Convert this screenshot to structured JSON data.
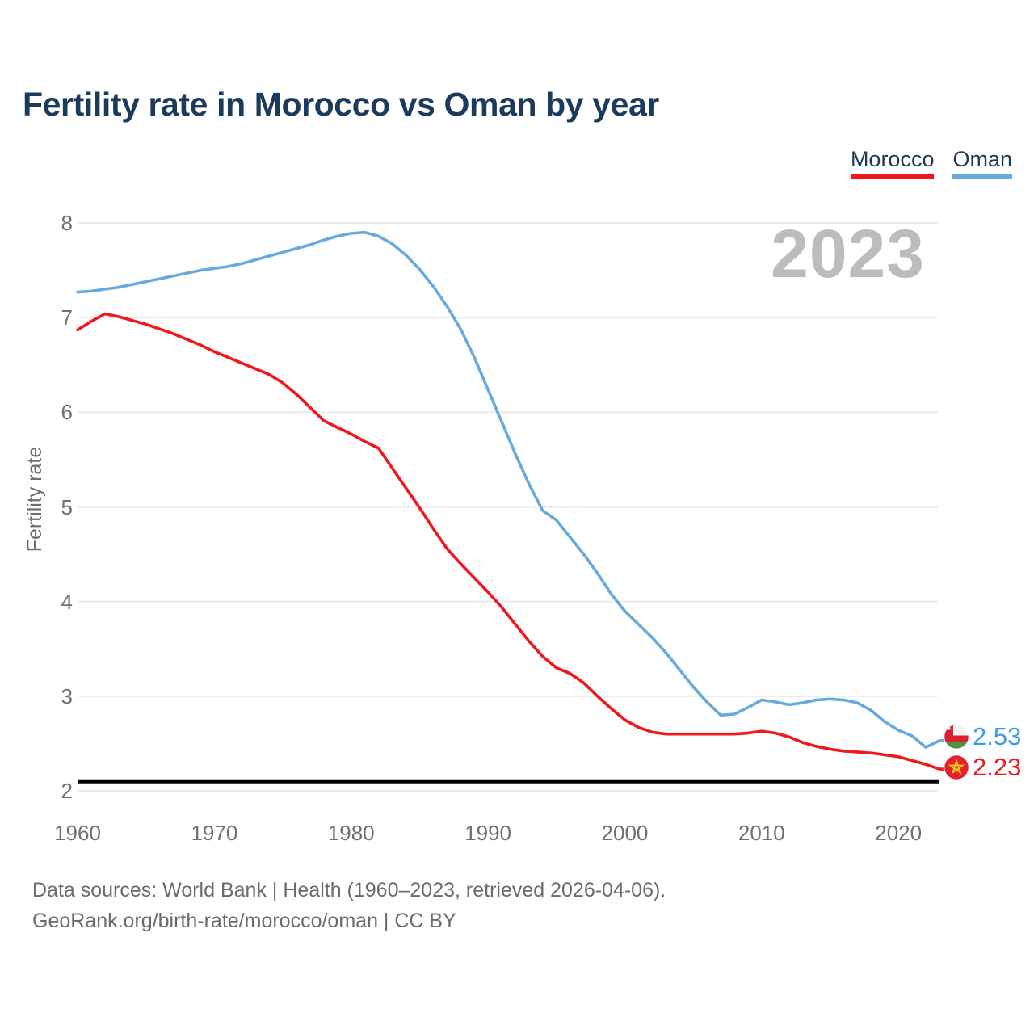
{
  "header": {
    "title": "Fertility rate in Morocco vs Oman by year"
  },
  "legend": [
    {
      "label": "Morocco",
      "color": "#f0181c"
    },
    {
      "label": "Oman",
      "color": "#67aade"
    }
  ],
  "watermark": {
    "text": "2023"
  },
  "chart_data": {
    "type": "line",
    "title": "Fertility rate in Morocco vs Oman by year",
    "xlabel": "",
    "ylabel": "Fertility rate",
    "xlim": [
      1960,
      2023
    ],
    "ylim": [
      2,
      8
    ],
    "xticks": [
      1960,
      1970,
      1980,
      1990,
      2000,
      2010,
      2020
    ],
    "yticks": [
      2,
      3,
      4,
      5,
      6,
      7,
      8
    ],
    "grid": "horizontal",
    "grid_color": "#ebebeb",
    "legend_position": "top-right",
    "x": [
      1960,
      1961,
      1962,
      1963,
      1964,
      1965,
      1966,
      1967,
      1968,
      1969,
      1970,
      1971,
      1972,
      1973,
      1974,
      1975,
      1976,
      1977,
      1978,
      1979,
      1980,
      1981,
      1982,
      1983,
      1984,
      1985,
      1986,
      1987,
      1988,
      1989,
      1990,
      1991,
      1992,
      1993,
      1994,
      1995,
      1996,
      1997,
      1998,
      1999,
      2000,
      2001,
      2002,
      2003,
      2004,
      2005,
      2006,
      2007,
      2008,
      2009,
      2010,
      2011,
      2012,
      2013,
      2014,
      2015,
      2016,
      2017,
      2018,
      2019,
      2020,
      2021,
      2022,
      2023
    ],
    "series": [
      {
        "name": "Morocco",
        "color": "#f0181c",
        "values": [
          6.87,
          6.96,
          7.04,
          7.01,
          6.97,
          6.93,
          6.88,
          6.83,
          6.77,
          6.71,
          6.64,
          6.58,
          6.52,
          6.46,
          6.4,
          6.31,
          6.19,
          6.05,
          5.91,
          5.84,
          5.77,
          5.69,
          5.62,
          5.41,
          5.2,
          4.99,
          4.77,
          4.56,
          4.4,
          4.25,
          4.1,
          3.94,
          3.76,
          3.58,
          3.42,
          3.3,
          3.24,
          3.14,
          3.0,
          2.87,
          2.75,
          2.67,
          2.62,
          2.6,
          2.6,
          2.6,
          2.6,
          2.6,
          2.6,
          2.61,
          2.63,
          2.61,
          2.57,
          2.51,
          2.47,
          2.44,
          2.42,
          2.41,
          2.4,
          2.38,
          2.36,
          2.32,
          2.28,
          2.23
        ]
      },
      {
        "name": "Oman",
        "color": "#67aade",
        "values": [
          7.27,
          7.28,
          7.3,
          7.32,
          7.35,
          7.38,
          7.41,
          7.44,
          7.47,
          7.5,
          7.52,
          7.54,
          7.57,
          7.61,
          7.65,
          7.69,
          7.73,
          7.77,
          7.82,
          7.86,
          7.89,
          7.9,
          7.86,
          7.78,
          7.66,
          7.51,
          7.33,
          7.12,
          6.88,
          6.58,
          6.24,
          5.9,
          5.56,
          5.24,
          4.96,
          4.86,
          4.68,
          4.5,
          4.3,
          4.08,
          3.9,
          3.76,
          3.62,
          3.46,
          3.28,
          3.1,
          2.94,
          2.8,
          2.81,
          2.88,
          2.96,
          2.94,
          2.91,
          2.93,
          2.96,
          2.97,
          2.96,
          2.93,
          2.85,
          2.73,
          2.64,
          2.58,
          2.46,
          2.53
        ]
      }
    ],
    "reference_line": {
      "value": 2.1,
      "color": "#000000"
    },
    "end_labels": [
      {
        "series": "Oman",
        "value": "2.53",
        "color": "#3f9ce6",
        "flag": "oman-flag"
      },
      {
        "series": "Morocco",
        "value": "2.23",
        "color": "#ef1c1f",
        "flag": "morocco-flag"
      }
    ]
  },
  "footer": {
    "line1": "Data sources: World Bank | Health (1960–2023, retrieved 2026-04-06).",
    "line2": "GeoRank.org/birth-rate/morocco/oman | CC BY"
  }
}
